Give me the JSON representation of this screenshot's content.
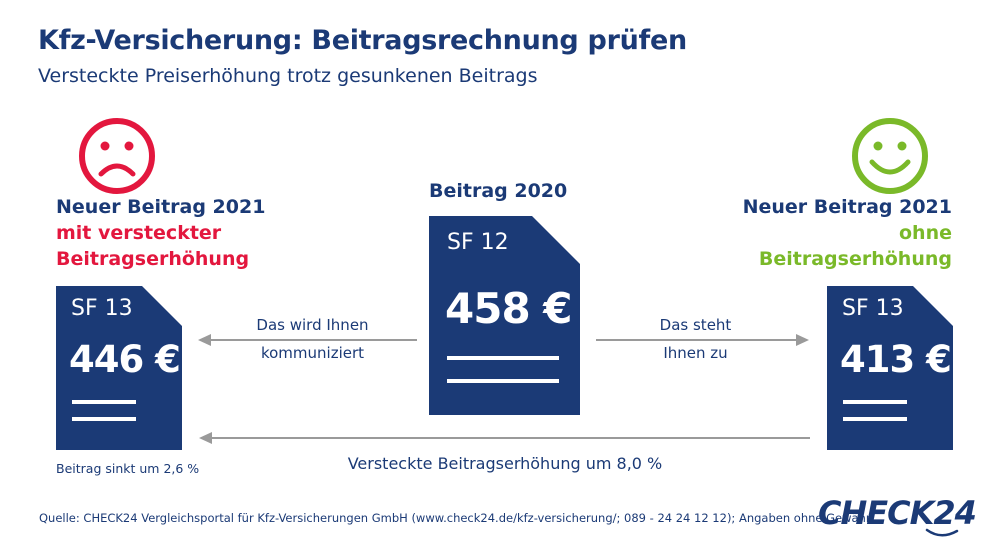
{
  "header": {
    "title": "Kfz-Versicherung: Beitragsrechnung prüfen",
    "subtitle": "Versteckte Preiserhöhung trotz gesunkenen Beitrags"
  },
  "left": {
    "heading": "Neuer Beitrag 2021",
    "sub_line1": "mit versteckter",
    "sub_line2": "Beitragserhöhung",
    "class": "SF 13",
    "amount": "446 €",
    "note": "Beitrag sinkt um 2,6 %",
    "face": "sad-face-icon"
  },
  "center": {
    "heading": "Beitrag 2020",
    "class": "SF 12",
    "amount": "458 €"
  },
  "right": {
    "heading": "Neuer Beitrag 2021",
    "sub_line1": "ohne",
    "sub_line2": "Beitragserhöhung",
    "class": "SF 13",
    "amount": "413 €",
    "face": "happy-face-icon"
  },
  "arrows": {
    "left_line1": "Das wird Ihnen",
    "left_line2": "kommuniziert",
    "right_line1": "Das steht",
    "right_line2": "Ihnen zu",
    "bottom": "Versteckte Beitragserhöhung um 8,0 %"
  },
  "footer": {
    "source": "Quelle: CHECK24 Vergleichsportal für Kfz-Versicherungen GmbH (www.check24.de/kfz-versicherung/; 089 - 24 24 12 12); Angaben ohne Gewähr",
    "logo": "CHECK24"
  },
  "colors": {
    "navy": "#1b3a76",
    "red": "#e3173e",
    "green": "#7ab929",
    "gray": "#9a9a9a"
  }
}
